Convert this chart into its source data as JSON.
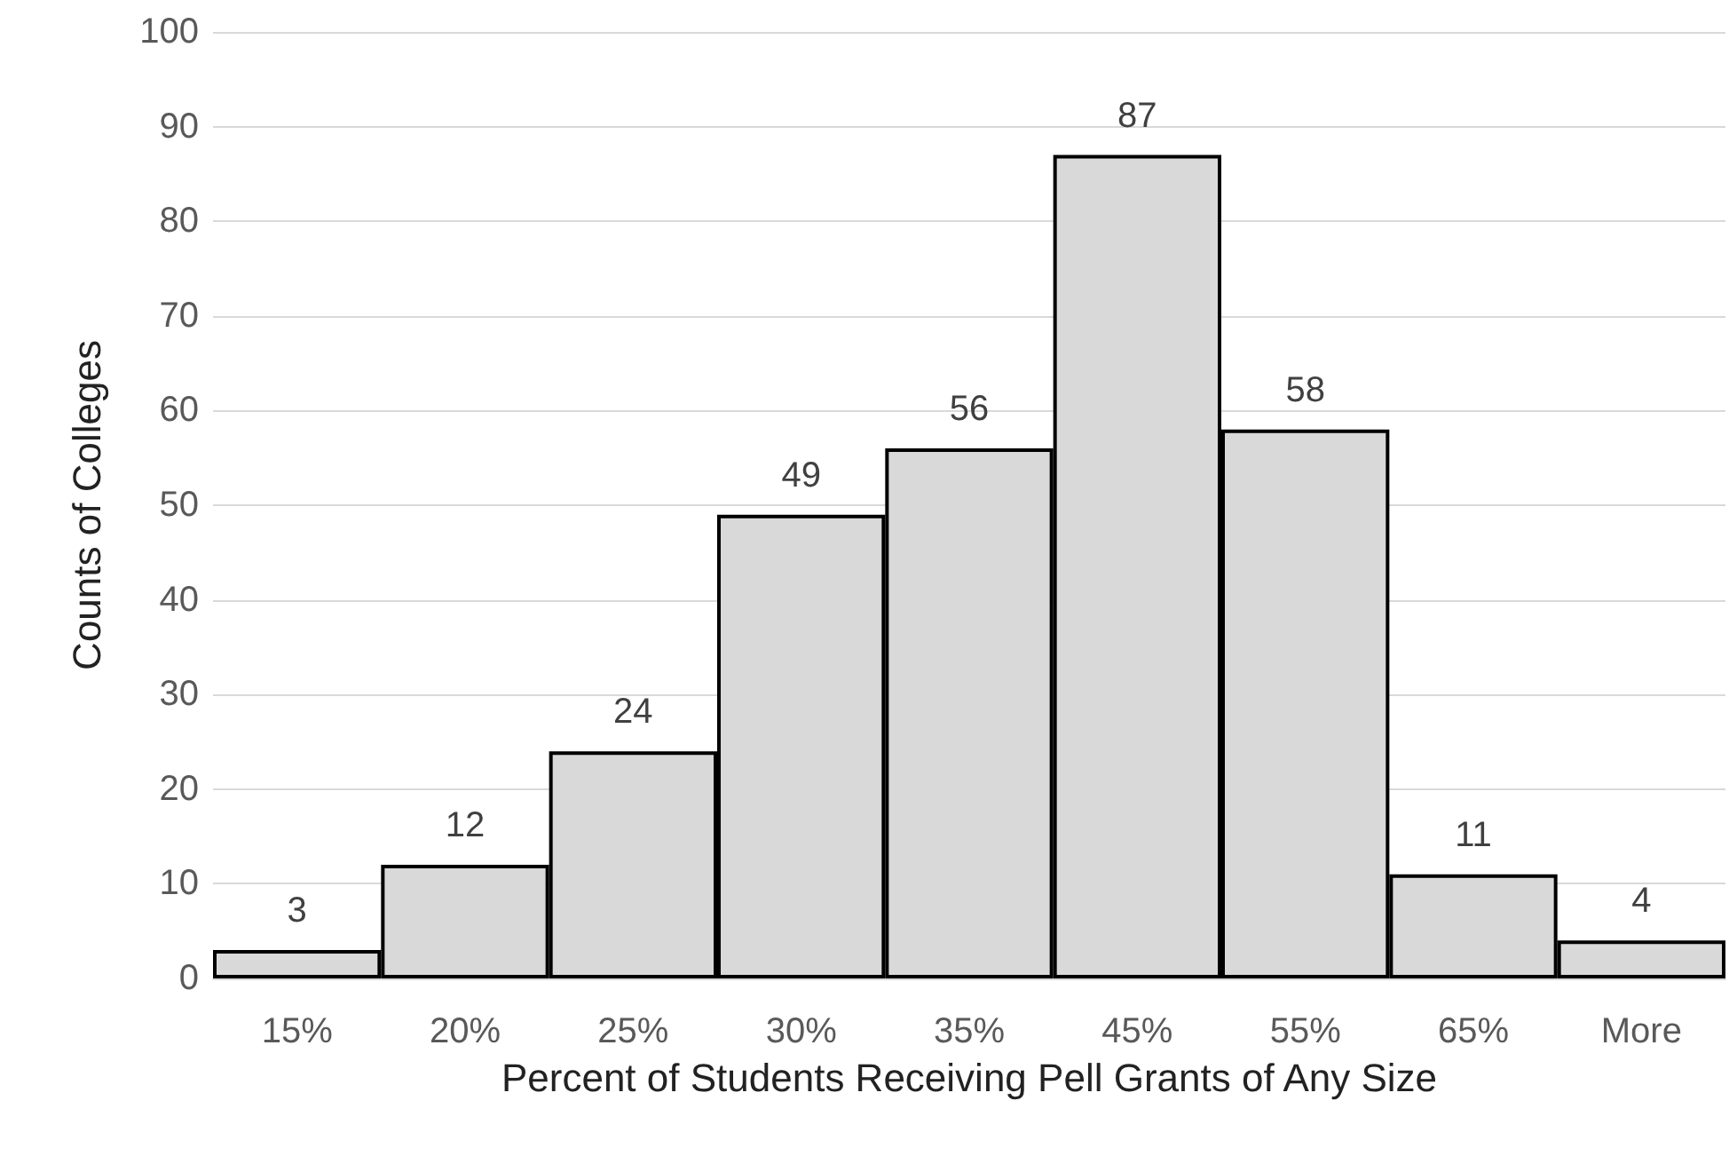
{
  "chart_data": {
    "type": "bar",
    "xlabel": "Percent of Students Receiving Pell Grants of Any Size",
    "ylabel": "Counts of Colleges",
    "categories": [
      "15%",
      "20%",
      "25%",
      "30%",
      "35%",
      "45%",
      "55%",
      "65%",
      "More"
    ],
    "values": [
      3,
      12,
      24,
      49,
      56,
      87,
      58,
      11,
      4
    ],
    "color": "#d9d9d9",
    "ylim": [
      0,
      100
    ],
    "yticks": [
      0,
      10,
      20,
      30,
      40,
      50,
      60,
      70,
      80,
      90,
      100
    ],
    "grid": "y",
    "data_labels": true
  }
}
